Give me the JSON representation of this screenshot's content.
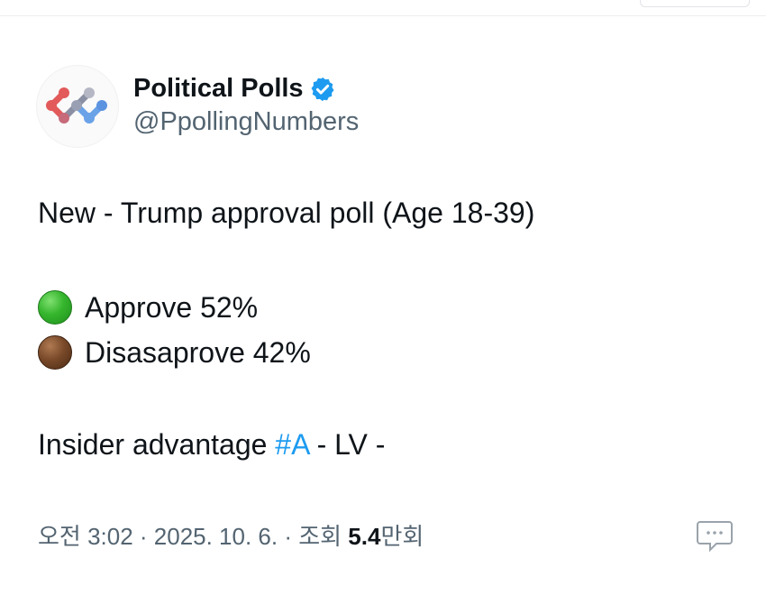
{
  "author": {
    "name": "Political Polls",
    "handle": "@PpollingNumbers",
    "verified": true,
    "avatar_icon": "molecule-logo-icon",
    "verified_icon": "verified-badge-icon",
    "verified_color": "#1d9bf0"
  },
  "tweet": {
    "line1": "New - Trump approval poll (Age 18-39)",
    "approve_label": "Approve 52%",
    "disapprove_label": "Disasaprove 42%",
    "approve_color": "#35b52d",
    "disapprove_color": "#6b3f22",
    "line4_prefix": "Insider advantage ",
    "hashtag": "#A",
    "line4_suffix": " - LV -"
  },
  "meta": {
    "time_date": "오전 3:02 · 2025. 10. 6. · 조회 ",
    "views_number": "5.4",
    "views_suffix": "만회",
    "comment_icon": "comment-bubble-icon"
  },
  "colors": {
    "text_primary": "#0f1419",
    "text_secondary": "#536471",
    "link": "#1d9bf0"
  }
}
